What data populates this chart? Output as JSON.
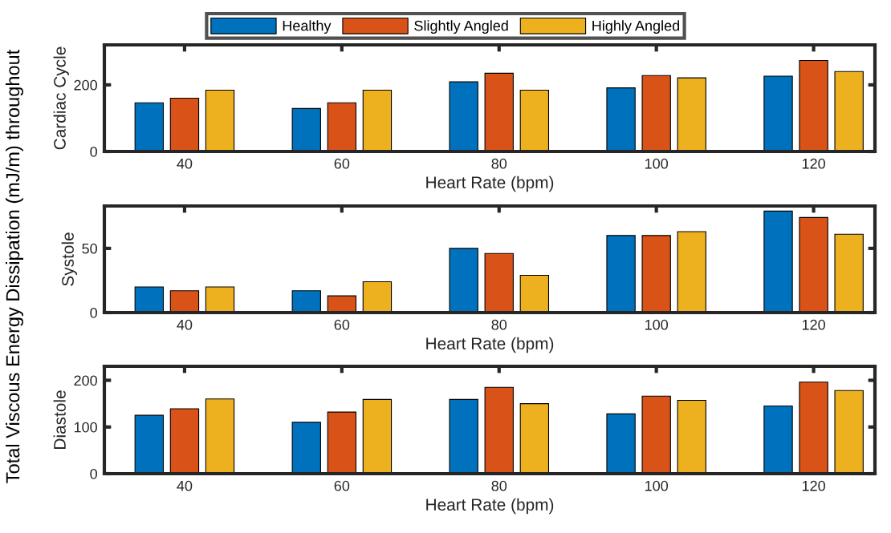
{
  "chart_data": [
    {
      "type": "bar",
      "categories": [
        "40",
        "60",
        "80",
        "100",
        "120"
      ],
      "xlabel": "Heart Rate (bpm)",
      "ylabel": "Cardiac Cycle",
      "ylim": [
        0,
        320
      ],
      "yticks": [
        0,
        200
      ],
      "legend": "top",
      "grid": false,
      "annotations": [
        "Total Viscous Energy Dissipation (mJ/m) throughout"
      ],
      "series": [
        {
          "name": "Healthy",
          "color": "#0072bd",
          "values": [
            146,
            129,
            209,
            191,
            226
          ]
        },
        {
          "name": "Slightly Angled",
          "color": "#d95319",
          "values": [
            160,
            146,
            235,
            228,
            273
          ]
        },
        {
          "name": "Highly Angled",
          "color": "#edb120",
          "values": [
            184,
            184,
            184,
            221,
            240
          ]
        }
      ]
    },
    {
      "type": "bar",
      "categories": [
        "40",
        "60",
        "80",
        "100",
        "120"
      ],
      "xlabel": "Heart Rate (bpm)",
      "ylabel": "Systole",
      "ylim": [
        0,
        83
      ],
      "yticks": [
        0,
        50
      ],
      "grid": false,
      "series": [
        {
          "color": "#0072bd",
          "values": [
            20,
            17,
            50,
            60,
            79
          ]
        },
        {
          "color": "#d95319",
          "values": [
            17,
            13,
            46,
            60,
            74
          ]
        },
        {
          "color": "#edb120",
          "values": [
            20,
            24,
            29,
            63,
            61
          ]
        }
      ]
    },
    {
      "type": "bar",
      "categories": [
        "40",
        "60",
        "80",
        "100",
        "120"
      ],
      "xlabel": "Heart Rate (bpm)",
      "ylabel": "Diastole",
      "ylim": [
        0,
        230
      ],
      "yticks": [
        0,
        100,
        200
      ],
      "grid": false,
      "series": [
        {
          "color": "#0072bd",
          "values": [
            125,
            110,
            159,
            128,
            145
          ]
        },
        {
          "color": "#d95319",
          "values": [
            139,
            132,
            185,
            166,
            196
          ]
        },
        {
          "color": "#edb120",
          "values": [
            160,
            159,
            150,
            157,
            178
          ]
        }
      ]
    }
  ]
}
